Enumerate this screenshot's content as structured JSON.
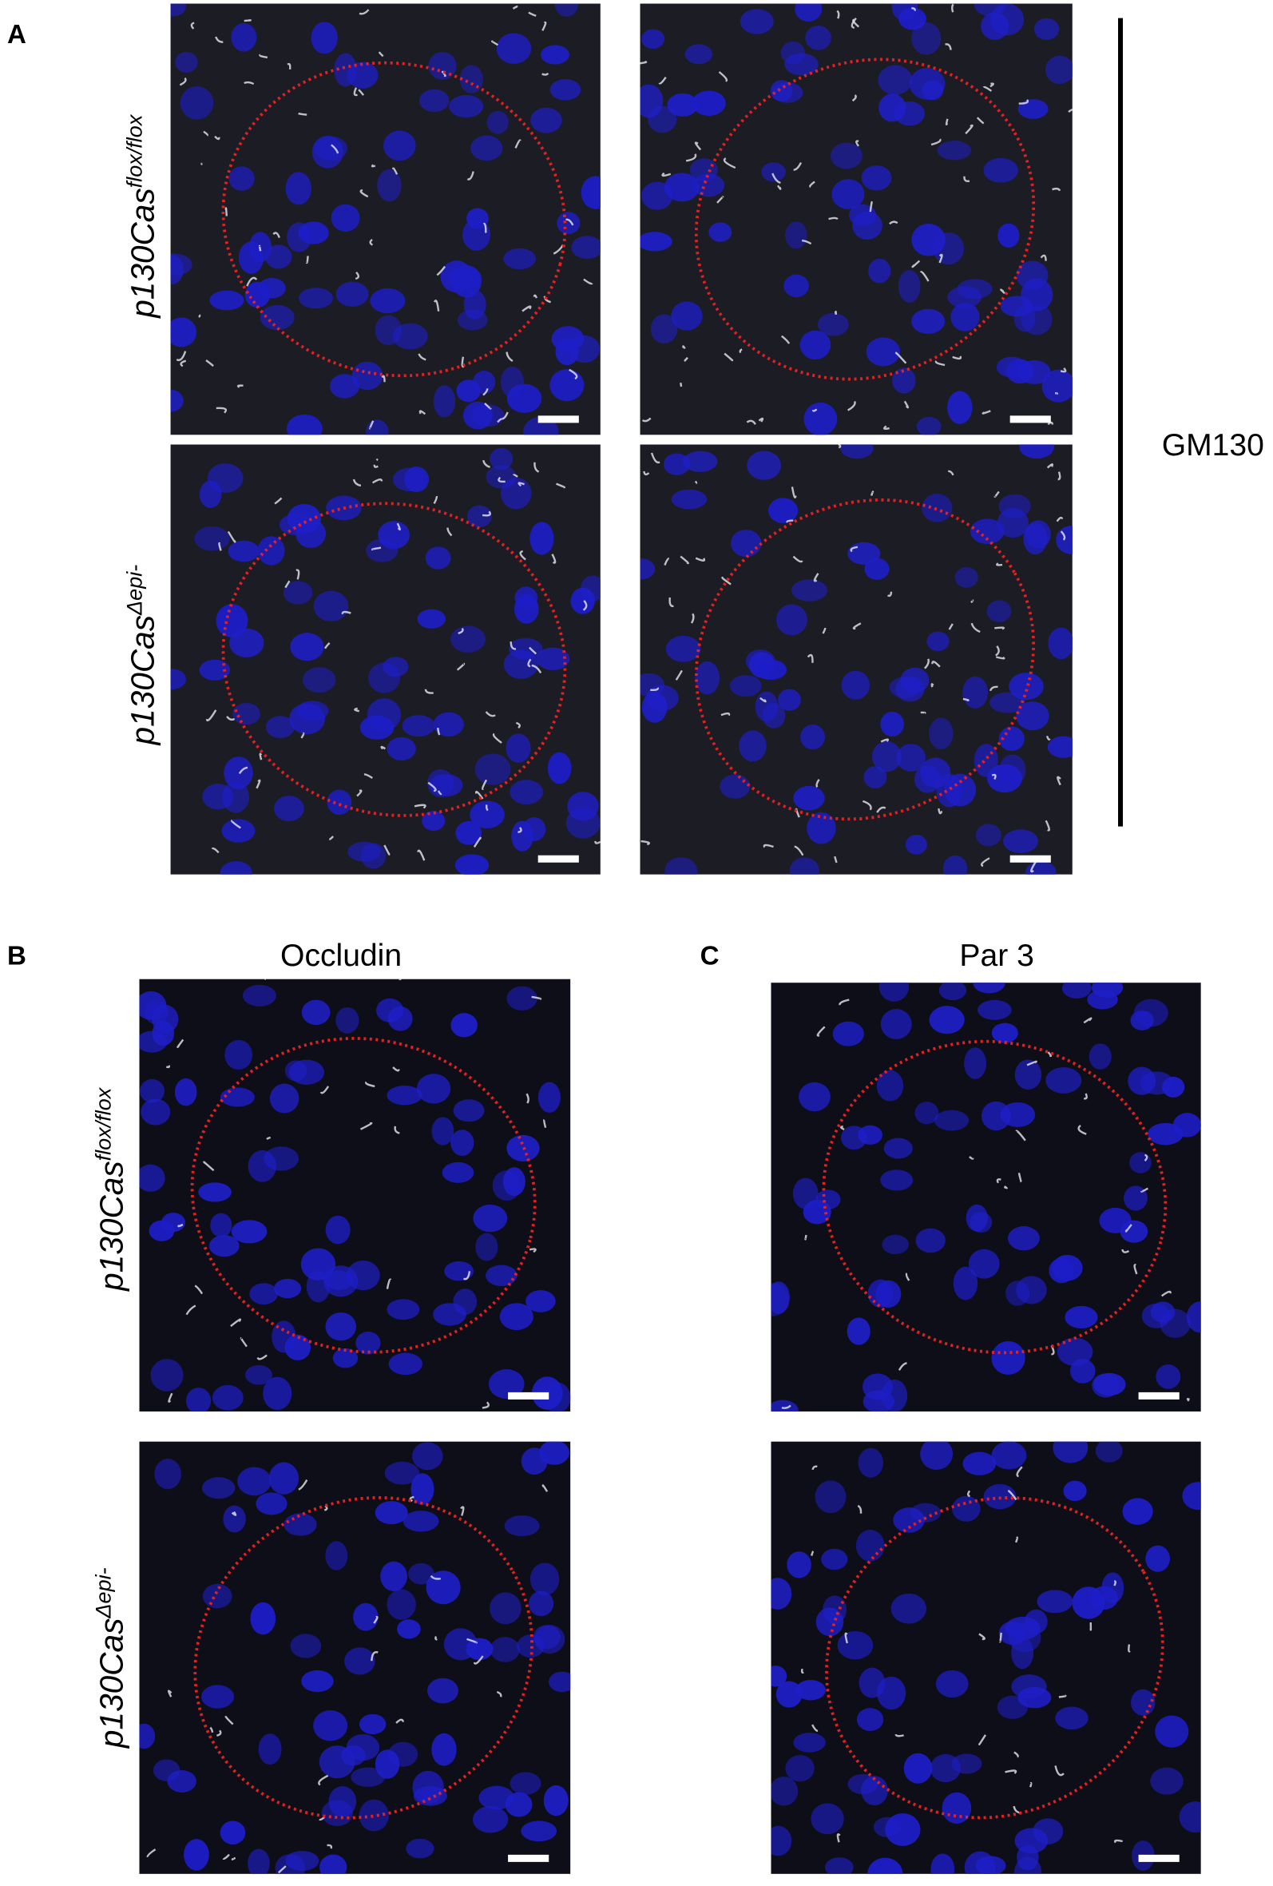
{
  "panel_a": {
    "label": "A",
    "stain": "GM130",
    "rows": [
      {
        "base": "p130Cas",
        "sup": "flox/flox"
      },
      {
        "base": "p130Cas",
        "sup": "Δepi-"
      }
    ]
  },
  "panel_b": {
    "label": "B",
    "title": "Occludin",
    "rows": [
      {
        "base": "p130Cas",
        "sup": "flox/flox"
      },
      {
        "base": "p130Cas",
        "sup": "Δepi-"
      }
    ]
  },
  "panel_c": {
    "label": "C",
    "title": "Par 3"
  }
}
